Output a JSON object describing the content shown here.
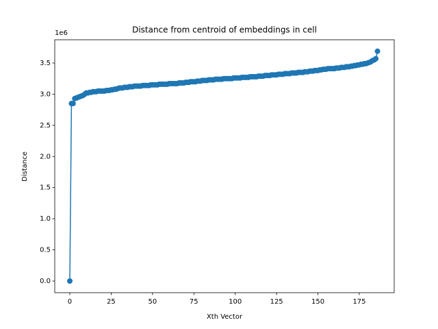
{
  "chart_data": {
    "type": "line",
    "title": "Distance from centroid of embeddings in cell",
    "x_label": "Xth Vector",
    "y_label": "Distance",
    "y_offset_label": "1e6",
    "color": "#1f77b4",
    "marker": "circle",
    "x": [
      0,
      1,
      2,
      3,
      4,
      5,
      6,
      7,
      8,
      9,
      10,
      11,
      12,
      13,
      14,
      15,
      16,
      17,
      18,
      19,
      20,
      21,
      22,
      23,
      24,
      25,
      26,
      27,
      28,
      29,
      30,
      31,
      32,
      33,
      34,
      35,
      36,
      37,
      38,
      39,
      40,
      41,
      42,
      43,
      44,
      45,
      46,
      47,
      48,
      49,
      50,
      51,
      52,
      53,
      54,
      55,
      56,
      57,
      58,
      59,
      60,
      61,
      62,
      63,
      64,
      65,
      66,
      67,
      68,
      69,
      70,
      71,
      72,
      73,
      74,
      75,
      76,
      77,
      78,
      79,
      80,
      81,
      82,
      83,
      84,
      85,
      86,
      87,
      88,
      89,
      90,
      91,
      92,
      93,
      94,
      95,
      96,
      97,
      98,
      99,
      100,
      101,
      102,
      103,
      104,
      105,
      106,
      107,
      108,
      109,
      110,
      111,
      112,
      113,
      114,
      115,
      116,
      117,
      118,
      119,
      120,
      121,
      122,
      123,
      124,
      125,
      126,
      127,
      128,
      129,
      130,
      131,
      132,
      133,
      134,
      135,
      136,
      137,
      138,
      139,
      140,
      141,
      142,
      143,
      144,
      145,
      146,
      147,
      148,
      149,
      150,
      151,
      152,
      153,
      154,
      155,
      156,
      157,
      158,
      159,
      160,
      161,
      162,
      163,
      164,
      165,
      166,
      167,
      168,
      169,
      170,
      171,
      172,
      173,
      174,
      175,
      176,
      177,
      178,
      179,
      180,
      181,
      182,
      183,
      184,
      185,
      186
    ],
    "values": [
      0,
      2.85,
      2.85,
      2.93,
      2.94,
      2.95,
      2.96,
      2.97,
      2.98,
      3.0,
      3.02,
      3.02,
      3.03,
      3.03,
      3.04,
      3.04,
      3.04,
      3.05,
      3.05,
      3.05,
      3.05,
      3.05,
      3.06,
      3.06,
      3.06,
      3.07,
      3.07,
      3.08,
      3.08,
      3.09,
      3.1,
      3.1,
      3.1,
      3.11,
      3.11,
      3.11,
      3.12,
      3.12,
      3.12,
      3.13,
      3.13,
      3.13,
      3.13,
      3.13,
      3.14,
      3.14,
      3.14,
      3.14,
      3.14,
      3.15,
      3.15,
      3.15,
      3.15,
      3.15,
      3.16,
      3.16,
      3.16,
      3.16,
      3.16,
      3.16,
      3.17,
      3.17,
      3.17,
      3.17,
      3.17,
      3.17,
      3.18,
      3.18,
      3.18,
      3.18,
      3.19,
      3.19,
      3.19,
      3.2,
      3.2,
      3.2,
      3.2,
      3.21,
      3.21,
      3.21,
      3.22,
      3.22,
      3.22,
      3.22,
      3.23,
      3.23,
      3.23,
      3.23,
      3.24,
      3.24,
      3.24,
      3.24,
      3.24,
      3.25,
      3.25,
      3.25,
      3.25,
      3.25,
      3.25,
      3.26,
      3.26,
      3.26,
      3.26,
      3.26,
      3.27,
      3.27,
      3.27,
      3.27,
      3.27,
      3.28,
      3.28,
      3.28,
      3.28,
      3.28,
      3.29,
      3.29,
      3.29,
      3.29,
      3.3,
      3.3,
      3.3,
      3.3,
      3.31,
      3.31,
      3.31,
      3.31,
      3.32,
      3.32,
      3.32,
      3.32,
      3.33,
      3.33,
      3.33,
      3.33,
      3.34,
      3.34,
      3.34,
      3.34,
      3.35,
      3.35,
      3.35,
      3.35,
      3.36,
      3.36,
      3.36,
      3.37,
      3.37,
      3.37,
      3.38,
      3.38,
      3.38,
      3.39,
      3.39,
      3.4,
      3.4,
      3.4,
      3.41,
      3.41,
      3.41,
      3.41,
      3.41,
      3.42,
      3.42,
      3.42,
      3.43,
      3.43,
      3.43,
      3.44,
      3.44,
      3.44,
      3.45,
      3.45,
      3.46,
      3.46,
      3.47,
      3.47,
      3.48,
      3.48,
      3.49,
      3.49,
      3.5,
      3.51,
      3.52,
      3.54,
      3.55,
      3.57,
      3.69
    ],
    "xlim": [
      -9.1,
      196.1
    ],
    "xticks": [
      0,
      25,
      50,
      75,
      100,
      125,
      150,
      175
    ],
    "ylim": [
      -0.187,
      3.874
    ],
    "yticks": [
      {
        "value": 0,
        "label": "0.0"
      },
      {
        "value": 0.5,
        "label": "0.5"
      },
      {
        "value": 1,
        "label": "1.0"
      },
      {
        "value": 1.5,
        "label": "1.5"
      },
      {
        "value": 2,
        "label": "2.0"
      },
      {
        "value": 2.5,
        "label": "2.5"
      },
      {
        "value": 3,
        "label": "3.0"
      },
      {
        "value": 3.5,
        "label": "3.5"
      }
    ],
    "grid": false
  }
}
